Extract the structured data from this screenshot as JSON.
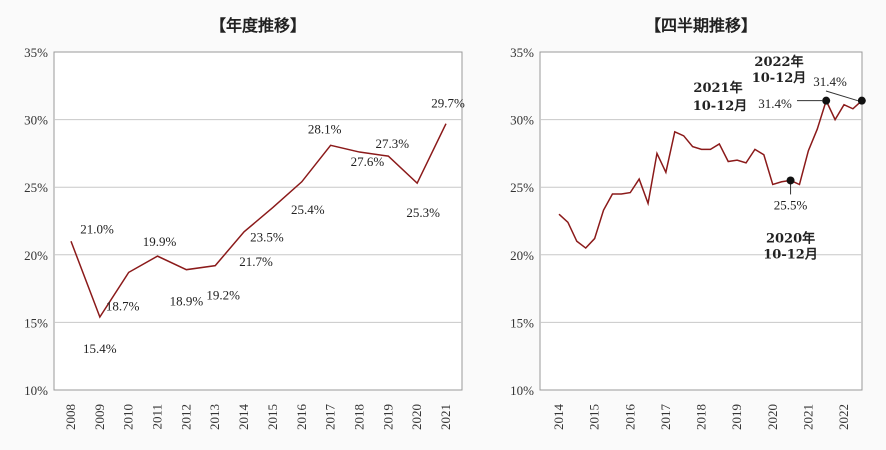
{
  "chart_data": [
    {
      "type": "line",
      "title": "【年度推移】",
      "ylim": [
        10,
        35
      ],
      "yticks": [
        "10%",
        "15%",
        "20%",
        "25%",
        "30%",
        "35%"
      ],
      "categories": [
        "2008",
        "2009",
        "2010",
        "2011",
        "2012",
        "2013",
        "2014",
        "2015",
        "2016",
        "2017",
        "2018",
        "2019",
        "2020",
        "2021"
      ],
      "values": [
        21.0,
        15.4,
        18.7,
        19.9,
        18.9,
        19.2,
        21.7,
        23.5,
        25.4,
        28.1,
        27.6,
        27.3,
        25.3,
        29.7
      ],
      "data_labels": [
        "21.0%",
        "15.4%",
        "18.7%",
        "19.9%",
        "18.9%",
        "19.2%",
        "21.7%",
        "23.5%",
        "25.4%",
        "28.1%",
        "27.6%",
        "27.3%",
        "25.3%",
        "29.7%"
      ],
      "grid": "horizontal",
      "line_color": "#8b1a1a"
    },
    {
      "type": "line",
      "title": "【四半期推移】",
      "ylim": [
        10,
        35
      ],
      "yticks": [
        "10%",
        "15%",
        "20%",
        "25%",
        "30%",
        "35%"
      ],
      "xticks": [
        "2014",
        "2015",
        "2016",
        "2017",
        "2018",
        "2019",
        "2020",
        "2021",
        "2022"
      ],
      "x": [
        2014.0,
        2014.25,
        2014.5,
        2014.75,
        2015.0,
        2015.25,
        2015.5,
        2015.75,
        2016.0,
        2016.25,
        2016.5,
        2016.75,
        2017.0,
        2017.25,
        2017.5,
        2017.75,
        2018.0,
        2018.25,
        2018.5,
        2018.75,
        2019.0,
        2019.25,
        2019.5,
        2019.75,
        2020.0,
        2020.25,
        2020.5,
        2020.75,
        2021.0,
        2021.25,
        2021.5,
        2021.75,
        2022.0,
        2022.25,
        2022.5
      ],
      "values": [
        23.0,
        22.4,
        21.0,
        20.5,
        21.2,
        23.3,
        24.5,
        24.5,
        24.6,
        25.6,
        23.8,
        27.5,
        26.1,
        29.1,
        28.8,
        28.0,
        27.8,
        27.8,
        28.2,
        26.9,
        27.0,
        26.8,
        27.8,
        27.4,
        25.2,
        25.4,
        25.5,
        25.2,
        27.7,
        29.3,
        31.4,
        30.0,
        31.1,
        30.8,
        31.4
      ],
      "grid": "horizontal",
      "line_color": "#8b1a1a",
      "annotations": [
        {
          "label": "2021年",
          "label2": "10-12月",
          "value_label": "31.4%",
          "x": 2021.5,
          "y": 31.4
        },
        {
          "label": "2020年",
          "label2": "10-12月",
          "value_label": "25.5%",
          "x": 2020.5,
          "y": 25.5
        },
        {
          "label": "2022年",
          "label2": "10-12月",
          "value_label": "31.4%",
          "x": 2022.5,
          "y": 31.4
        }
      ]
    }
  ]
}
